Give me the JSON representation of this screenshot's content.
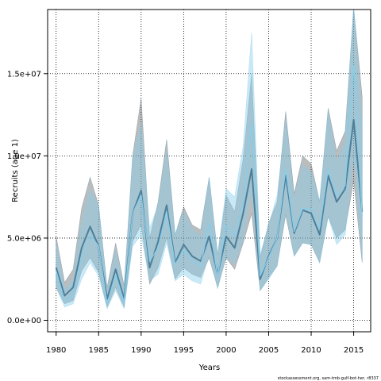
{
  "chart_data": {
    "type": "area",
    "xlabel": "Years",
    "ylabel": "Recruits (age 1)",
    "xlim": [
      1979,
      2017
    ],
    "ylim": [
      -700000,
      18900000
    ],
    "x_ticks": [
      1980,
      1985,
      1990,
      1995,
      2000,
      2005,
      2010,
      2015
    ],
    "x_tick_labels": [
      "1980",
      "1985",
      "1990",
      "1995",
      "2000",
      "2005",
      "2010",
      "2015"
    ],
    "y_ticks": [
      0,
      5000000,
      10000000,
      15000000
    ],
    "y_tick_labels": [
      "0.0e+00",
      "5.0e+06",
      "1.0e+07",
      "1.5e+07"
    ],
    "grid": true,
    "years": [
      1980,
      1981,
      1982,
      1983,
      1984,
      1985,
      1986,
      1987,
      1988,
      1989,
      1990,
      1991,
      1992,
      1993,
      1994,
      1995,
      1996,
      1997,
      1998,
      1999,
      2000,
      2001,
      2002,
      2003,
      2004,
      2005,
      2006,
      2007,
      2008,
      2009,
      2010,
      2011,
      2012,
      2013,
      2014,
      2015,
      2016
    ],
    "series": [
      {
        "color": "#4f7f99",
        "values": [
          3200000,
          1500000,
          2000000,
          4400000,
          5700000,
          4500000,
          1300000,
          3100000,
          1300000,
          6500000,
          7900000,
          3200000,
          4800000,
          7000000,
          3500000,
          4600000,
          3900000,
          3600000,
          5100000,
          2800000,
          5100000,
          4400000,
          6500000,
          9200000,
          2500000,
          3900000,
          5000000,
          8800000,
          5300000,
          6700000,
          6500000,
          5200000,
          8800000,
          7200000,
          8000000,
          12200000,
          6600000
        ],
        "lower": [
          2000000,
          1000000,
          1200000,
          3000000,
          3800000,
          2900000,
          800000,
          2000000,
          800000,
          4800000,
          5800000,
          2200000,
          3200000,
          5000000,
          2500000,
          3200000,
          2800000,
          2600000,
          3800000,
          2000000,
          3800000,
          3100000,
          4700000,
          6500000,
          1800000,
          2600000,
          3300000,
          6400000,
          3900000,
          4700000,
          4600000,
          3500000,
          6300000,
          5000000,
          5500000,
          8500000,
          3500000
        ],
        "upper": [
          5100000,
          2300000,
          3100000,
          6800000,
          8700000,
          7000000,
          2000000,
          4700000,
          2100000,
          10000000,
          13500000,
          5000000,
          7200000,
          11000000,
          5200000,
          6900000,
          5800000,
          5500000,
          8700000,
          4000000,
          7600000,
          6600000,
          9800000,
          15000000,
          3800000,
          5900000,
          7200000,
          12700000,
          7700000,
          10000000,
          9500000,
          7200000,
          12900000,
          10300000,
          11500000,
          19000000,
          13600000
        ]
      },
      {
        "color": "#87ceeb",
        "values": [
          3000000,
          1200000,
          1500000,
          3800000,
          5200000,
          4500000,
          1000000,
          2800000,
          1100000,
          6500000,
          7600000,
          3600000,
          4400000,
          6600000,
          3400000,
          4300000,
          3600000,
          3300000,
          5900000,
          2700000,
          5800000,
          5100000,
          7200000,
          12000000,
          2700000,
          3800000,
          5000000,
          9200000,
          5400000,
          6800000,
          6800000,
          5600000,
          9200000,
          7600000,
          8200000,
          15500000,
          6300000
        ],
        "lower": [
          2000000,
          800000,
          1000000,
          2500000,
          3500000,
          2700000,
          700000,
          1800000,
          700000,
          4500000,
          5200000,
          2400000,
          2800000,
          4700000,
          2400000,
          2800000,
          2400000,
          2200000,
          4000000,
          1900000,
          3900000,
          3400000,
          4900000,
          7900000,
          1800000,
          2500000,
          3300000,
          6700000,
          3900000,
          4700000,
          4600000,
          3500000,
          6300000,
          4600000,
          5200000,
          9900000,
          3800000
        ],
        "upper": [
          4700000,
          1900000,
          2500000,
          6000000,
          8000000,
          7000000,
          1700000,
          4300000,
          1800000,
          9800000,
          12000000,
          5600000,
          7000000,
          10300000,
          5200000,
          6600000,
          5600000,
          5100000,
          8700000,
          4000000,
          8000000,
          7500000,
          10600000,
          17500000,
          4000000,
          5800000,
          7600000,
          12200000,
          7300000,
          9500000,
          9000000,
          7300000,
          12700000,
          9700000,
          11000000,
          19200000,
          12000000
        ]
      }
    ]
  },
  "footer_note": "stockassessment.org, sam-tmb-gulf-bot-her, r8337"
}
